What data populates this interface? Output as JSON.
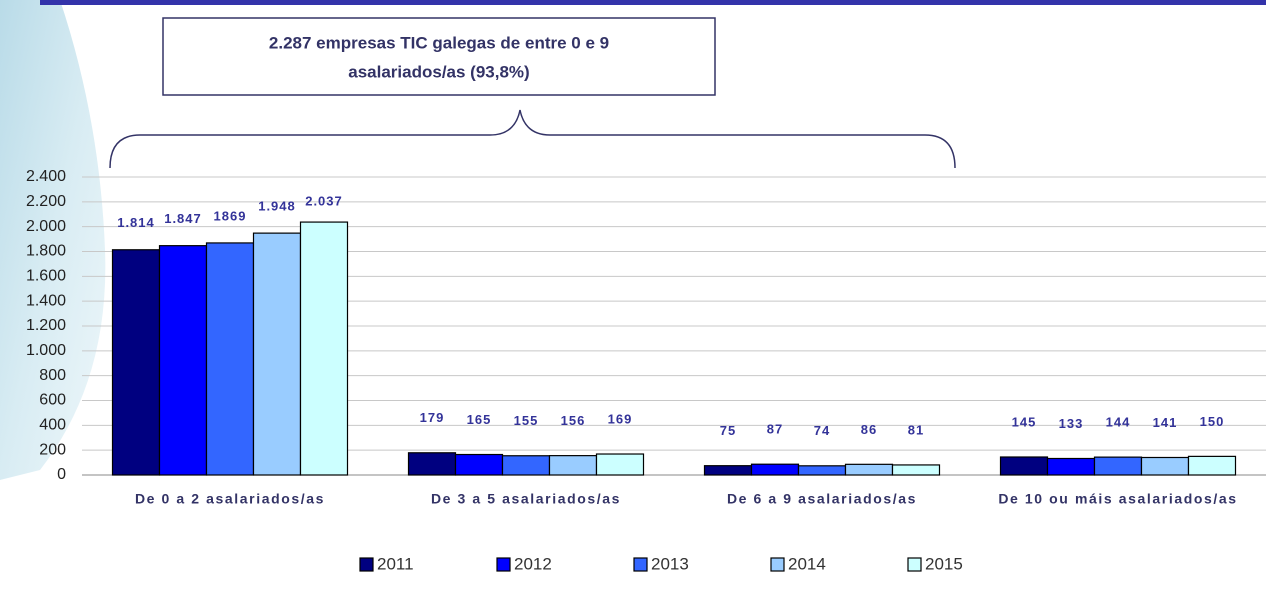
{
  "chart_data": {
    "type": "bar",
    "categories": [
      "De 0 a 2 asalariados/as",
      "De 3 a 5 asalariados/as",
      "De 6 a 9 asalariados/as",
      "De 10 ou máis asalariados/as"
    ],
    "series": [
      {
        "name": "2011",
        "color": "#000080",
        "values": [
          1814,
          179,
          75,
          145
        ],
        "value_labels": [
          "1.814",
          "179",
          "75",
          "145"
        ]
      },
      {
        "name": "2012",
        "color": "#0000ff",
        "values": [
          1847,
          165,
          87,
          133
        ],
        "value_labels": [
          "1.847",
          "165",
          "87",
          "133"
        ]
      },
      {
        "name": "2013",
        "color": "#3366ff",
        "values": [
          1869,
          155,
          74,
          144
        ],
        "value_labels": [
          "1869",
          "155",
          "74",
          "144"
        ]
      },
      {
        "name": "2014",
        "color": "#99ccff",
        "values": [
          1948,
          156,
          86,
          141
        ],
        "value_labels": [
          "1.948",
          "156",
          "86",
          "141"
        ]
      },
      {
        "name": "2015",
        "color": "#ccffff",
        "values": [
          2037,
          169,
          81,
          150
        ],
        "value_labels": [
          "2.037",
          "169",
          "81",
          "150"
        ]
      }
    ],
    "ylim": [
      0,
      2400
    ],
    "yticks": [
      0,
      200,
      400,
      600,
      800,
      {
        "value": 1000,
        "label": "1.000"
      },
      {
        "value": 1200,
        "label": "1.200"
      },
      {
        "value": 1400,
        "label": "1.400"
      },
      {
        "value": 1600,
        "label": "1.600"
      },
      {
        "value": 1800,
        "label": "1.800"
      },
      {
        "value": 2000,
        "label": "2.000"
      },
      {
        "value": 2200,
        "label": "2.200"
      },
      {
        "value": 2400,
        "label": "2.400"
      }
    ],
    "grid": true,
    "annotation": [
      "2.287 empresas TIC galegas de entre 0 e 9",
      "asalariados/as (93,8%)"
    ]
  }
}
